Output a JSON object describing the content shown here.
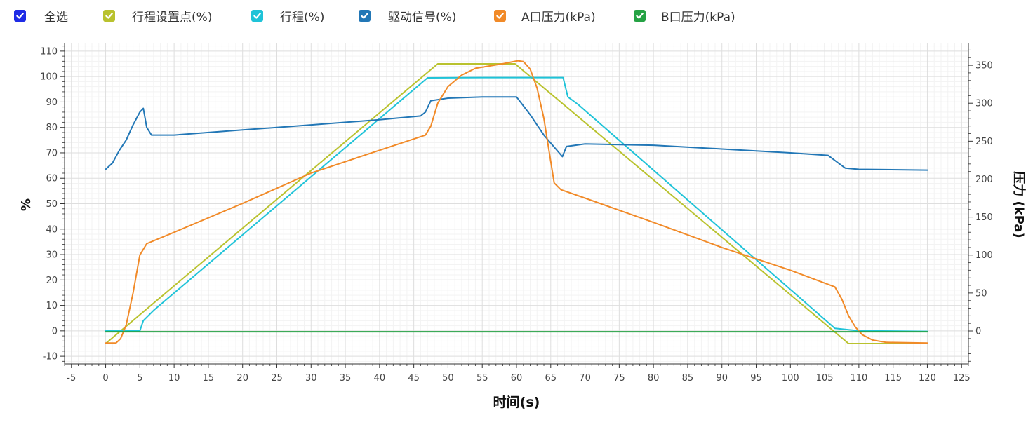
{
  "legend": {
    "items": [
      {
        "key": "select_all",
        "label": "全选",
        "color": "#1E2BE6"
      },
      {
        "key": "setpoint",
        "label": "行程设置点(%)",
        "color": "#B9C22E"
      },
      {
        "key": "travel",
        "label": "行程(%)",
        "color": "#1FC3D8"
      },
      {
        "key": "drive",
        "label": "驱动信号(%)",
        "color": "#2277B6"
      },
      {
        "key": "pa",
        "label": "A口压力(kPa)",
        "color": "#F18A28"
      },
      {
        "key": "pb",
        "label": "B口压力(kPa)",
        "color": "#25A244"
      }
    ]
  },
  "chart_data": {
    "type": "line",
    "xlabel": "时间(s)",
    "ylabel": "%",
    "y2label": "压力 (kPa)",
    "xlim": [
      -6,
      126
    ],
    "ylim": [
      -13,
      113
    ],
    "y2lim": [
      -43.4,
      378.7
    ],
    "xticks": [
      -5,
      0,
      5,
      10,
      15,
      20,
      25,
      30,
      35,
      40,
      45,
      50,
      55,
      60,
      65,
      70,
      75,
      80,
      85,
      90,
      95,
      100,
      105,
      110,
      115,
      120,
      125
    ],
    "yticks": [
      -10,
      0,
      10,
      20,
      30,
      40,
      50,
      60,
      70,
      80,
      90,
      100,
      110
    ],
    "y2ticks": [
      0,
      50,
      100,
      150,
      200,
      250,
      300,
      350
    ],
    "grid": true,
    "series": [
      {
        "name": "行程设置点(%)",
        "axis": "left",
        "color": "#B9C22E",
        "points": [
          [
            0,
            -5
          ],
          [
            48.5,
            105
          ],
          [
            59.8,
            105
          ],
          [
            108.5,
            -5
          ],
          [
            120,
            -5
          ]
        ]
      },
      {
        "name": "行程(%)",
        "axis": "left",
        "color": "#1FC3D8",
        "points": [
          [
            0,
            0
          ],
          [
            5,
            0
          ],
          [
            5.5,
            4
          ],
          [
            7,
            8
          ],
          [
            47,
            99.5
          ],
          [
            55,
            99.6
          ],
          [
            66.8,
            99.6
          ],
          [
            67.5,
            92
          ],
          [
            69,
            89
          ],
          [
            106.5,
            1
          ],
          [
            110,
            0
          ],
          [
            120,
            -0.2
          ]
        ]
      },
      {
        "name": "驱动信号(%)",
        "axis": "left",
        "color": "#2277B6",
        "points": [
          [
            0,
            63.5
          ],
          [
            1,
            66
          ],
          [
            2,
            71
          ],
          [
            3,
            75
          ],
          [
            4,
            81
          ],
          [
            5,
            86
          ],
          [
            5.5,
            87.5
          ],
          [
            6,
            80
          ],
          [
            6.7,
            77
          ],
          [
            10,
            77
          ],
          [
            20,
            79
          ],
          [
            30,
            81
          ],
          [
            40,
            83
          ],
          [
            46,
            84.5
          ],
          [
            46.7,
            86
          ],
          [
            47.5,
            90.5
          ],
          [
            50,
            91.5
          ],
          [
            55,
            92
          ],
          [
            60,
            92
          ],
          [
            62,
            85
          ],
          [
            64,
            77
          ],
          [
            66.7,
            68.5
          ],
          [
            67.3,
            72.5
          ],
          [
            70,
            73.5
          ],
          [
            80,
            73
          ],
          [
            90,
            71.5
          ],
          [
            100,
            70
          ],
          [
            105.5,
            69
          ],
          [
            106,
            68
          ],
          [
            107,
            66
          ],
          [
            108,
            64
          ],
          [
            110,
            63.5
          ],
          [
            120,
            63.2
          ]
        ]
      },
      {
        "name": "A口压力(kPa)",
        "axis": "right",
        "color": "#F18A28",
        "points": [
          [
            0,
            -16
          ],
          [
            1.5,
            -16
          ],
          [
            2.2,
            -10
          ],
          [
            3,
            8
          ],
          [
            4,
            50
          ],
          [
            5,
            100
          ],
          [
            6,
            115
          ],
          [
            10,
            130
          ],
          [
            20,
            168
          ],
          [
            30,
            208
          ],
          [
            40,
            238
          ],
          [
            46.7,
            258
          ],
          [
            47.5,
            270
          ],
          [
            48.5,
            300
          ],
          [
            50,
            322
          ],
          [
            52,
            337
          ],
          [
            54,
            346
          ],
          [
            58,
            352
          ],
          [
            60.2,
            356
          ],
          [
            61,
            355
          ],
          [
            62,
            345
          ],
          [
            63,
            320
          ],
          [
            64,
            280
          ],
          [
            64.7,
            240
          ],
          [
            65.5,
            195
          ],
          [
            66.5,
            186
          ],
          [
            70,
            175
          ],
          [
            80,
            143
          ],
          [
            90,
            110
          ],
          [
            100,
            80
          ],
          [
            106.5,
            58
          ],
          [
            107.5,
            42
          ],
          [
            108.5,
            20
          ],
          [
            109.5,
            5
          ],
          [
            110.5,
            -5
          ],
          [
            112,
            -12
          ],
          [
            114,
            -15
          ],
          [
            120,
            -16
          ]
        ]
      },
      {
        "name": "B口压力(kPa)",
        "axis": "right",
        "color": "#25A244",
        "points": [
          [
            0,
            -1
          ],
          [
            120,
            -1
          ]
        ]
      }
    ]
  }
}
